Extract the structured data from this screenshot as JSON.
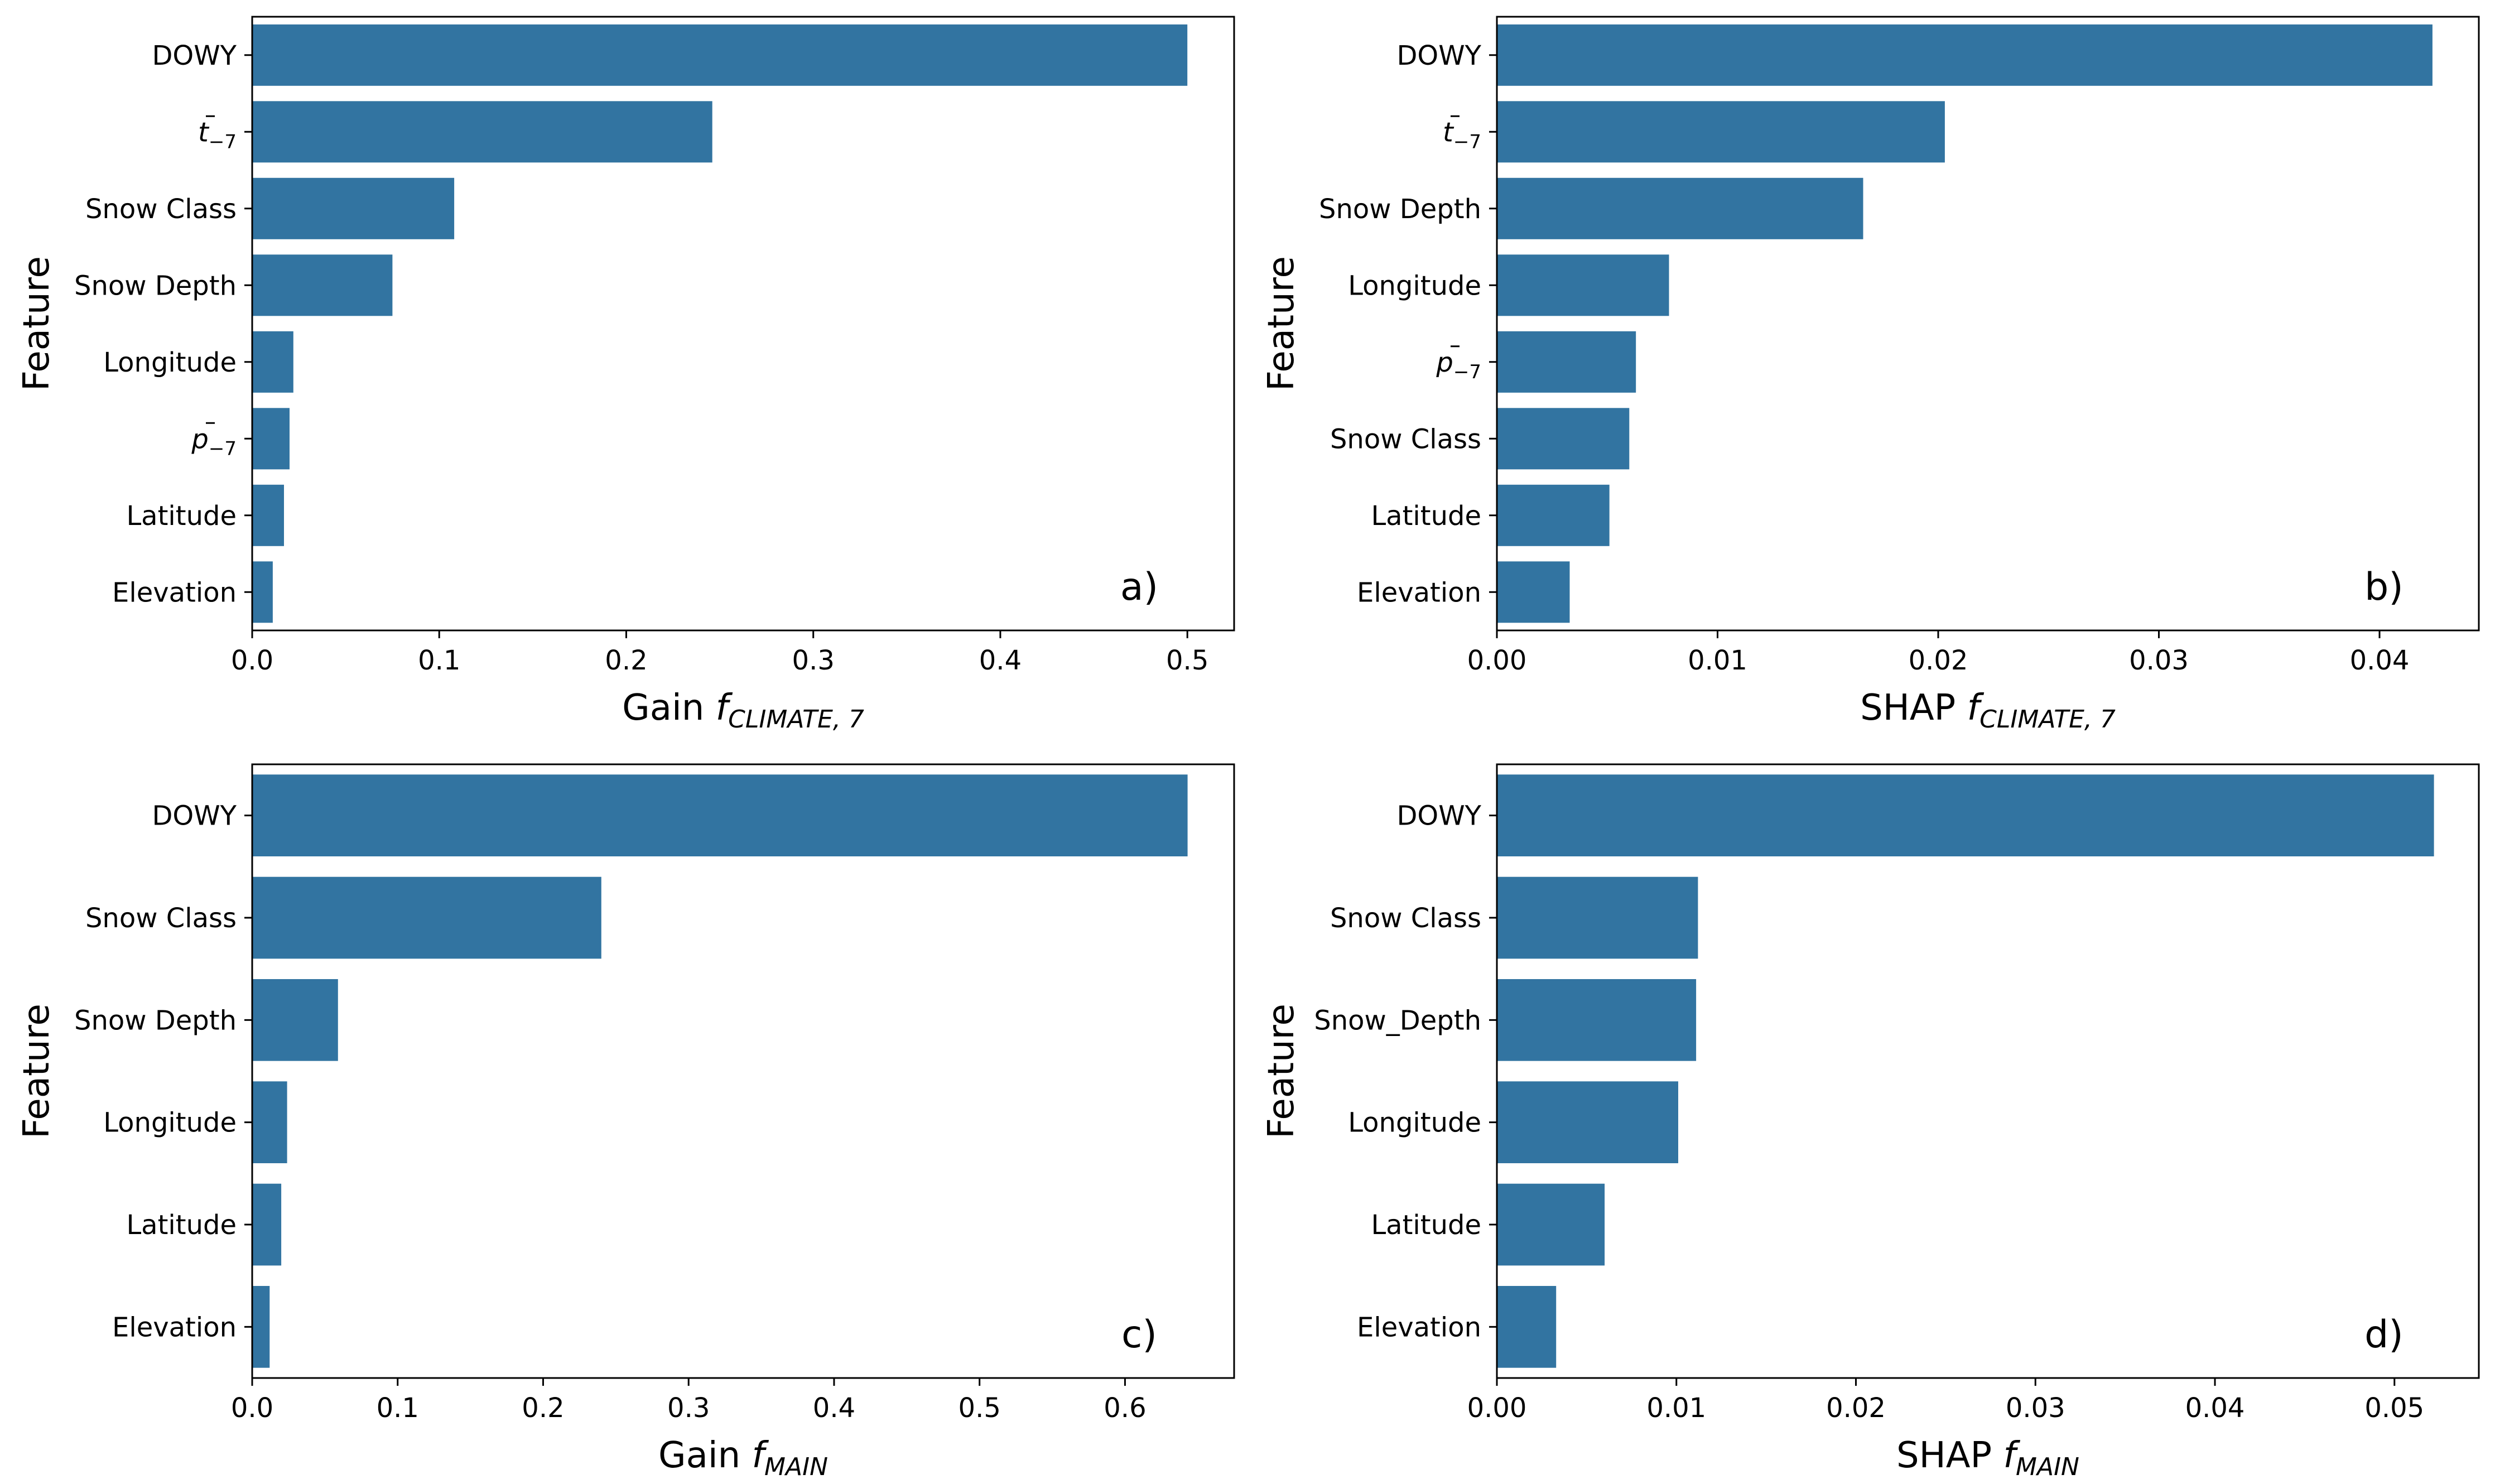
{
  "figure": {
    "bar_color": "#3274a1",
    "background": "#ffffff"
  },
  "chart_data": [
    {
      "type": "bar",
      "orientation": "horizontal",
      "panel": "a)",
      "xlabel_main": "Gain ",
      "xlabel_func": "f",
      "xlabel_sub": "CLIMATE, 7",
      "ylabel": "Feature",
      "categories": [
        {
          "text": "DOWY",
          "math": false
        },
        {
          "text": "t",
          "math": true,
          "bar": true,
          "sub": "−7"
        },
        {
          "text": "Snow Class",
          "math": false
        },
        {
          "text": "Snow Depth",
          "math": false
        },
        {
          "text": "Longitude",
          "math": false
        },
        {
          "text": "p",
          "math": true,
          "bar": true,
          "sub": "−7"
        },
        {
          "text": "Latitude",
          "math": false
        },
        {
          "text": "Elevation",
          "math": false
        }
      ],
      "values": [
        0.5,
        0.246,
        0.108,
        0.075,
        0.022,
        0.02,
        0.017,
        0.011
      ],
      "xlim": [
        0,
        0.525
      ],
      "xticks": [
        0,
        0.1,
        0.2,
        0.3,
        0.4,
        0.5
      ],
      "xtick_labels": [
        "0.0",
        "0.1",
        "0.2",
        "0.3",
        "0.4",
        "0.5"
      ]
    },
    {
      "type": "bar",
      "orientation": "horizontal",
      "panel": "b)",
      "xlabel_main": "SHAP ",
      "xlabel_func": "f",
      "xlabel_sub": "CLIMATE, 7",
      "ylabel": "Feature",
      "categories": [
        {
          "text": "DOWY",
          "math": false
        },
        {
          "text": "t",
          "math": true,
          "bar": true,
          "sub": "−7"
        },
        {
          "text": "Snow Depth",
          "math": false
        },
        {
          "text": "Longitude",
          "math": false
        },
        {
          "text": "p",
          "math": true,
          "bar": true,
          "sub": "−7"
        },
        {
          "text": "Snow Class",
          "math": false
        },
        {
          "text": "Latitude",
          "math": false
        },
        {
          "text": "Elevation",
          "math": false
        }
      ],
      "values": [
        0.0424,
        0.0203,
        0.0166,
        0.0078,
        0.0063,
        0.006,
        0.0051,
        0.0033
      ],
      "xlim": [
        0,
        0.0445
      ],
      "xticks": [
        0,
        0.01,
        0.02,
        0.03,
        0.04
      ],
      "xtick_labels": [
        "0.00",
        "0.01",
        "0.02",
        "0.03",
        "0.04"
      ]
    },
    {
      "type": "bar",
      "orientation": "horizontal",
      "panel": "c)",
      "xlabel_main": "Gain ",
      "xlabel_func": "f",
      "xlabel_sub": "MAIN",
      "ylabel": "Feature",
      "categories": [
        {
          "text": "DOWY",
          "math": false
        },
        {
          "text": "Snow Class",
          "math": false
        },
        {
          "text": "Snow Depth",
          "math": false
        },
        {
          "text": "Longitude",
          "math": false
        },
        {
          "text": "Latitude",
          "math": false
        },
        {
          "text": "Elevation",
          "math": false
        }
      ],
      "values": [
        0.643,
        0.24,
        0.059,
        0.024,
        0.02,
        0.012
      ],
      "xlim": [
        0,
        0.675
      ],
      "xticks": [
        0,
        0.1,
        0.2,
        0.3,
        0.4,
        0.5,
        0.6
      ],
      "xtick_labels": [
        "0.0",
        "0.1",
        "0.2",
        "0.3",
        "0.4",
        "0.5",
        "0.6"
      ]
    },
    {
      "type": "bar",
      "orientation": "horizontal",
      "panel": "d)",
      "xlabel_main": "SHAP ",
      "xlabel_func": "f",
      "xlabel_sub": "MAIN",
      "ylabel": "Feature",
      "categories": [
        {
          "text": "DOWY",
          "math": false
        },
        {
          "text": "Snow Class",
          "math": false
        },
        {
          "text": "Snow_Depth",
          "math": false
        },
        {
          "text": "Longitude",
          "math": false
        },
        {
          "text": "Latitude",
          "math": false
        },
        {
          "text": "Elevation",
          "math": false
        }
      ],
      "values": [
        0.0522,
        0.0112,
        0.0111,
        0.0101,
        0.006,
        0.0033
      ],
      "xlim": [
        0,
        0.0547
      ],
      "xticks": [
        0,
        0.01,
        0.02,
        0.03,
        0.04,
        0.05
      ],
      "xtick_labels": [
        "0.00",
        "0.01",
        "0.02",
        "0.03",
        "0.04",
        "0.05"
      ]
    }
  ]
}
